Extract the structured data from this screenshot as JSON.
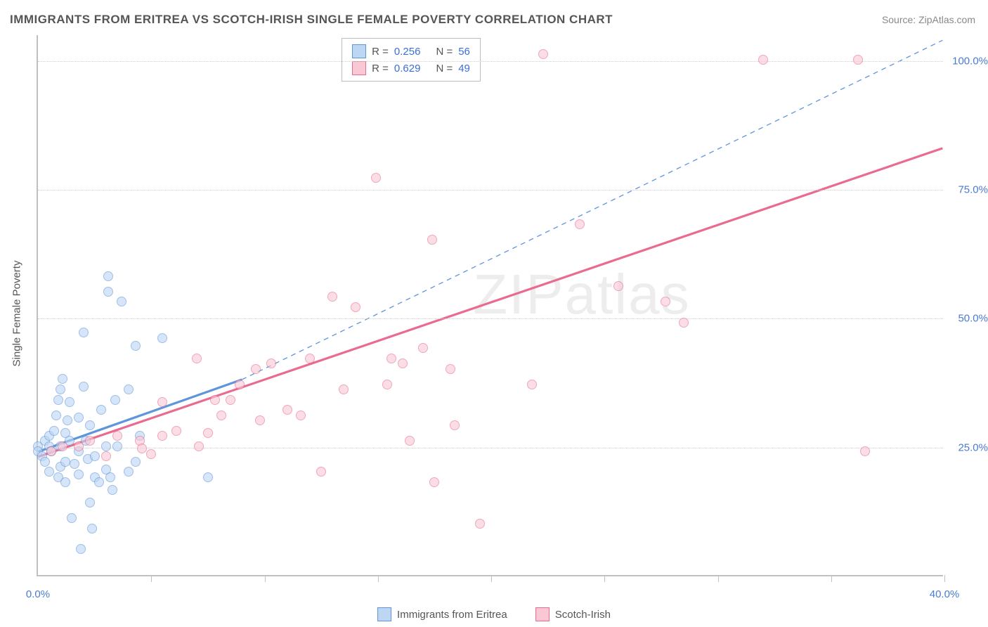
{
  "title": "IMMIGRANTS FROM ERITREA VS SCOTCH-IRISH SINGLE FEMALE POVERTY CORRELATION CHART",
  "source_label": "Source: ZipAtlas.com",
  "y_axis_label": "Single Female Poverty",
  "watermark": "ZIPatlas",
  "chart": {
    "type": "scatter",
    "xlim": [
      0,
      40
    ],
    "ylim": [
      0,
      105
    ],
    "x_ticks": [
      0,
      5,
      10,
      15,
      20,
      25,
      30,
      35,
      40
    ],
    "x_tick_labels": {
      "0": "0.0%",
      "40": "40.0%"
    },
    "y_ticks": [
      25,
      50,
      75,
      100
    ],
    "y_tick_labels": {
      "25": "25.0%",
      "50": "50.0%",
      "75": "75.0%",
      "100": "100.0%"
    },
    "background_color": "#ffffff",
    "grid_color": "#d0d0d0",
    "axis_color": "#c0c0c0",
    "tick_label_color": "#4a7bd0",
    "text_color": "#555555",
    "title_fontsize": 17,
    "label_fontsize": 15,
    "marker_radius": 7,
    "marker_opacity": 0.6,
    "series": [
      {
        "name": "Immigrants from Eritrea",
        "color_fill": "#bcd6f4",
        "color_stroke": "#5e95db",
        "R": "0.256",
        "N": "56",
        "trend_solid": {
          "x1": 0,
          "y1": 24,
          "x2": 9,
          "y2": 38
        },
        "trend_dashed": {
          "x1": 9,
          "y1": 38,
          "x2": 40,
          "y2": 104
        },
        "points": [
          [
            0,
            25
          ],
          [
            0,
            24
          ],
          [
            0.2,
            23
          ],
          [
            0.3,
            26
          ],
          [
            0.3,
            22
          ],
          [
            0.5,
            25
          ],
          [
            0.5,
            27
          ],
          [
            0.5,
            20
          ],
          [
            0.6,
            24
          ],
          [
            0.7,
            28
          ],
          [
            0.8,
            31
          ],
          [
            0.9,
            34
          ],
          [
            0.9,
            19
          ],
          [
            1.0,
            21
          ],
          [
            1.0,
            25
          ],
          [
            1.0,
            36
          ],
          [
            1.1,
            38
          ],
          [
            1.2,
            27.5
          ],
          [
            1.2,
            22
          ],
          [
            1.2,
            18
          ],
          [
            1.3,
            30
          ],
          [
            1.4,
            26
          ],
          [
            1.4,
            33.5
          ],
          [
            1.5,
            11
          ],
          [
            1.6,
            21.5
          ],
          [
            1.8,
            24
          ],
          [
            1.8,
            19.5
          ],
          [
            1.8,
            30.5
          ],
          [
            2.0,
            47
          ],
          [
            2.0,
            36.5
          ],
          [
            2.1,
            26
          ],
          [
            2.2,
            22.5
          ],
          [
            2.3,
            14
          ],
          [
            2.3,
            29
          ],
          [
            2.5,
            19
          ],
          [
            2.5,
            23
          ],
          [
            2.7,
            18
          ],
          [
            2.8,
            32
          ],
          [
            3.0,
            20.5
          ],
          [
            3.0,
            25
          ],
          [
            3.1,
            58
          ],
          [
            3.1,
            55
          ],
          [
            3.2,
            19
          ],
          [
            3.3,
            16.5
          ],
          [
            3.4,
            34
          ],
          [
            3.5,
            25
          ],
          [
            3.7,
            53
          ],
          [
            4.0,
            20
          ],
          [
            4.0,
            36
          ],
          [
            4.3,
            22
          ],
          [
            4.3,
            44.5
          ],
          [
            4.5,
            27
          ],
          [
            5.5,
            46
          ],
          [
            7.5,
            19
          ],
          [
            1.9,
            5
          ],
          [
            2.4,
            9
          ]
        ]
      },
      {
        "name": "Scotch-Irish",
        "color_fill": "#f8c8d5",
        "color_stroke": "#e96b8f",
        "R": "0.629",
        "N": "49",
        "trend_solid": {
          "x1": 0,
          "y1": 23,
          "x2": 40,
          "y2": 83
        },
        "trend_dashed": null,
        "points": [
          [
            0.6,
            24
          ],
          [
            1.1,
            25
          ],
          [
            1.8,
            25
          ],
          [
            2.3,
            26
          ],
          [
            3.0,
            23
          ],
          [
            3.5,
            27
          ],
          [
            4.5,
            26
          ],
          [
            4.6,
            24.5
          ],
          [
            5.0,
            23.5
          ],
          [
            5.5,
            27
          ],
          [
            5.5,
            33.5
          ],
          [
            6.1,
            28
          ],
          [
            7.1,
            25
          ],
          [
            7.5,
            27.5
          ],
          [
            7.8,
            34
          ],
          [
            8.1,
            31
          ],
          [
            8.5,
            34
          ],
          [
            8.9,
            37
          ],
          [
            9.6,
            40
          ],
          [
            9.8,
            30
          ],
          [
            10.3,
            41
          ],
          [
            11.0,
            32
          ],
          [
            11.6,
            31
          ],
          [
            12.0,
            42
          ],
          [
            12.5,
            20
          ],
          [
            13.0,
            54
          ],
          [
            13.5,
            36
          ],
          [
            14.0,
            52
          ],
          [
            14.9,
            77
          ],
          [
            15.4,
            37
          ],
          [
            15.6,
            42
          ],
          [
            16.1,
            41
          ],
          [
            16.4,
            26
          ],
          [
            17.0,
            44
          ],
          [
            17.4,
            65
          ],
          [
            17.5,
            18
          ],
          [
            18.2,
            40
          ],
          [
            18.4,
            29
          ],
          [
            19.5,
            10
          ],
          [
            21.8,
            37
          ],
          [
            22.3,
            101
          ],
          [
            23.9,
            68
          ],
          [
            25.6,
            56
          ],
          [
            27.7,
            53
          ],
          [
            28.5,
            49
          ],
          [
            32.0,
            100
          ],
          [
            36.5,
            24
          ],
          [
            36.2,
            100
          ],
          [
            7.0,
            42
          ]
        ]
      }
    ]
  },
  "legend_bottom": [
    {
      "label": "Immigrants from Eritrea",
      "fill": "#bcd6f4",
      "stroke": "#5e95db"
    },
    {
      "label": "Scotch-Irish",
      "fill": "#f8c8d5",
      "stroke": "#e96b8f"
    }
  ]
}
